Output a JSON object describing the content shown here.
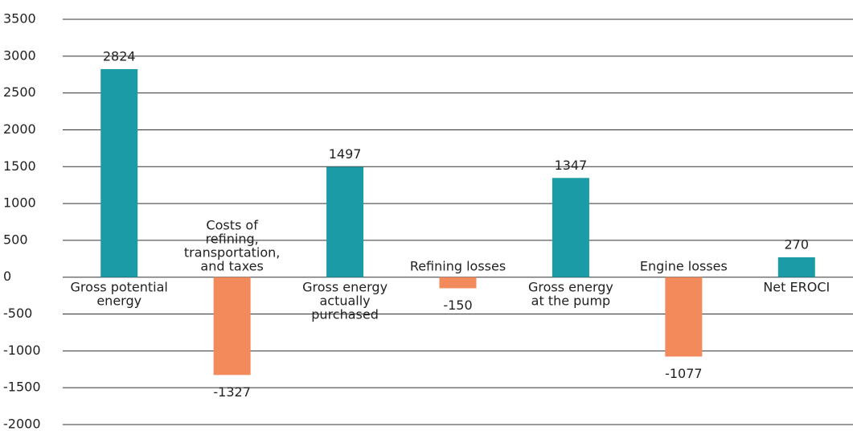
{
  "chart_data": {
    "type": "bar",
    "categories": [
      "Gross potential\nenergy",
      "Costs of\nrefining,\ntransportation,\nand taxes",
      "Gross energy\nactually\npurchased",
      "Refining losses",
      "Gross energy\nat the pump",
      "Engine losses",
      "Net EROCI"
    ],
    "values": [
      2824,
      -1327,
      1497,
      -150,
      1347,
      -1077,
      270
    ],
    "colors": [
      "#1a9ba6",
      "#f28a5c",
      "#1a9ba6",
      "#f28a5c",
      "#1a9ba6",
      "#f28a5c",
      "#1a9ba6"
    ],
    "ylim": [
      -2000,
      3500
    ],
    "yticks": [
      -2000,
      -1500,
      -1000,
      -500,
      0,
      500,
      1000,
      1500,
      2000,
      2500,
      3000,
      3500
    ],
    "grid": true
  }
}
